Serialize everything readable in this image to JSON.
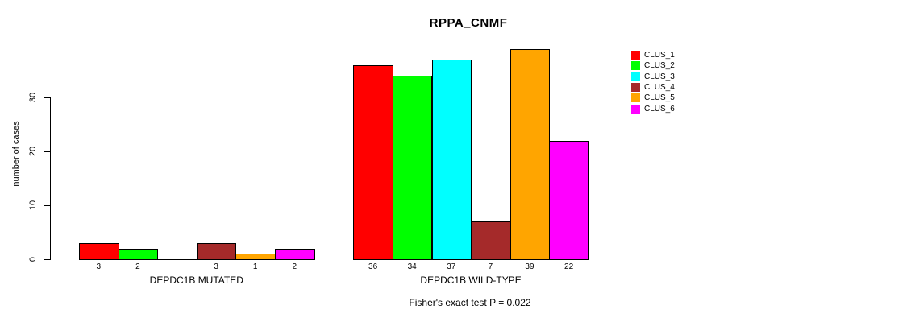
{
  "figure": {
    "title": "RPPA_CNMF",
    "footer": "Fisher's exact test P = 0.022"
  },
  "chart_data": {
    "type": "bar",
    "title": "RPPA_CNMF",
    "xlabel": "",
    "ylabel": "number of cases",
    "ylim": [
      0,
      40
    ],
    "yticks": [
      0,
      10,
      20,
      30
    ],
    "grid": false,
    "legend_position": "right",
    "categories": [
      "DEPDC1B MUTATED",
      "DEPDC1B WILD-TYPE"
    ],
    "series": [
      {
        "name": "CLUS_1",
        "color": "#FF0000",
        "values": [
          3,
          36
        ]
      },
      {
        "name": "CLUS_2",
        "color": "#00FF00",
        "values": [
          2,
          34
        ]
      },
      {
        "name": "CLUS_3",
        "color": "#00FFFF",
        "values": [
          0,
          37
        ]
      },
      {
        "name": "CLUS_4",
        "color": "#A52A2A",
        "values": [
          3,
          7
        ]
      },
      {
        "name": "CLUS_5",
        "color": "#FFA500",
        "values": [
          1,
          39
        ]
      },
      {
        "name": "CLUS_6",
        "color": "#FF00FF",
        "values": [
          2,
          22
        ]
      }
    ],
    "bar_value_labels_shown": true,
    "annotation": "Fisher's exact test P = 0.022",
    "axis_color": "#000000",
    "bar_border_color": "#000000"
  }
}
